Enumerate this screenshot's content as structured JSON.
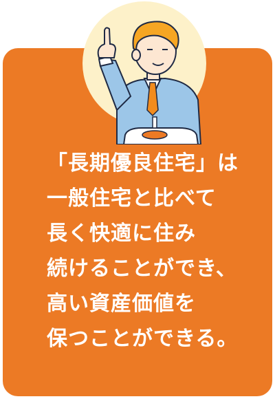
{
  "message": {
    "lines": [
      "「長期優良住宅」は",
      "一般住宅と比べて",
      "長く快適に住み",
      "続けることができ、",
      "高い資産価値を",
      "保つことができる。"
    ]
  },
  "colors": {
    "card": "#ec7a25",
    "halo": "#fdf1c9",
    "text": "#ffffff"
  },
  "illustration": {
    "subject": "man-in-suit-pointing-up"
  }
}
